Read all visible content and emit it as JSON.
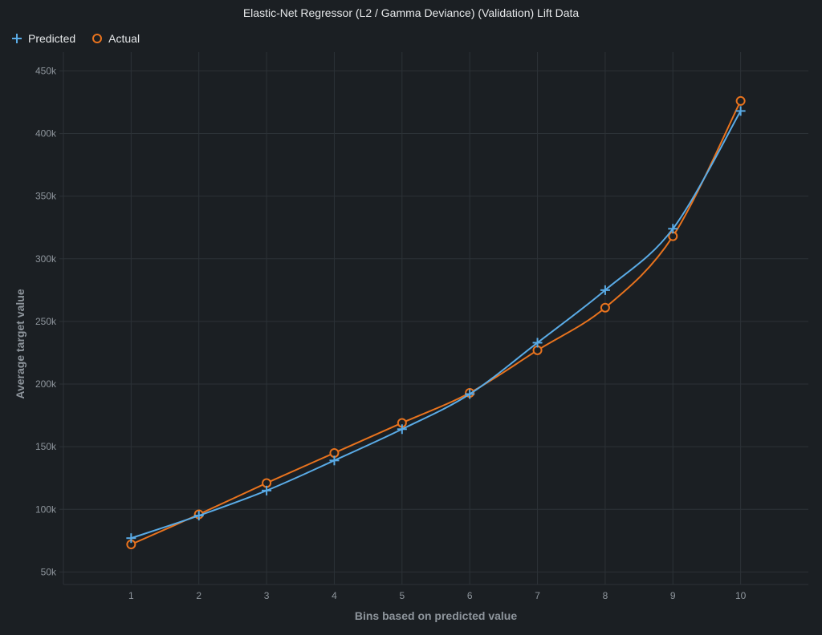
{
  "colors": {
    "background": "#1b1f23",
    "grid": "#2c3237",
    "predicted": "#5aabe6",
    "actual": "#e8731e",
    "text": "#e6e8ea",
    "muted_text": "#8e959c"
  },
  "chart_data": {
    "type": "line",
    "title": "Elastic-Net Regressor (L2 / Gamma Deviance) (Validation) Lift Data",
    "xlabel": "Bins based on predicted value",
    "ylabel": "Average target value",
    "x": [
      1,
      2,
      3,
      4,
      5,
      6,
      7,
      8,
      9,
      10
    ],
    "x_tick_labels": [
      "1",
      "2",
      "3",
      "4",
      "5",
      "6",
      "7",
      "8",
      "9",
      "10"
    ],
    "xlim": [
      0,
      11
    ],
    "ylim": [
      40000,
      465000
    ],
    "y_ticks": [
      50000,
      100000,
      150000,
      200000,
      250000,
      300000,
      350000,
      400000,
      450000
    ],
    "y_tick_labels": [
      "50k",
      "100k",
      "150k",
      "200k",
      "250k",
      "300k",
      "350k",
      "400k",
      "450k"
    ],
    "grid": true,
    "legend_position": "top-left",
    "series": [
      {
        "name": "Predicted",
        "marker": "plus",
        "color": "#5aabe6",
        "values": [
          77000,
          95000,
          115000,
          139000,
          164000,
          192000,
          233000,
          275000,
          324000,
          418000
        ]
      },
      {
        "name": "Actual",
        "marker": "circle",
        "color": "#e8731e",
        "values": [
          72000,
          96000,
          121000,
          145000,
          169000,
          193000,
          227000,
          261000,
          318000,
          426000
        ]
      }
    ]
  }
}
